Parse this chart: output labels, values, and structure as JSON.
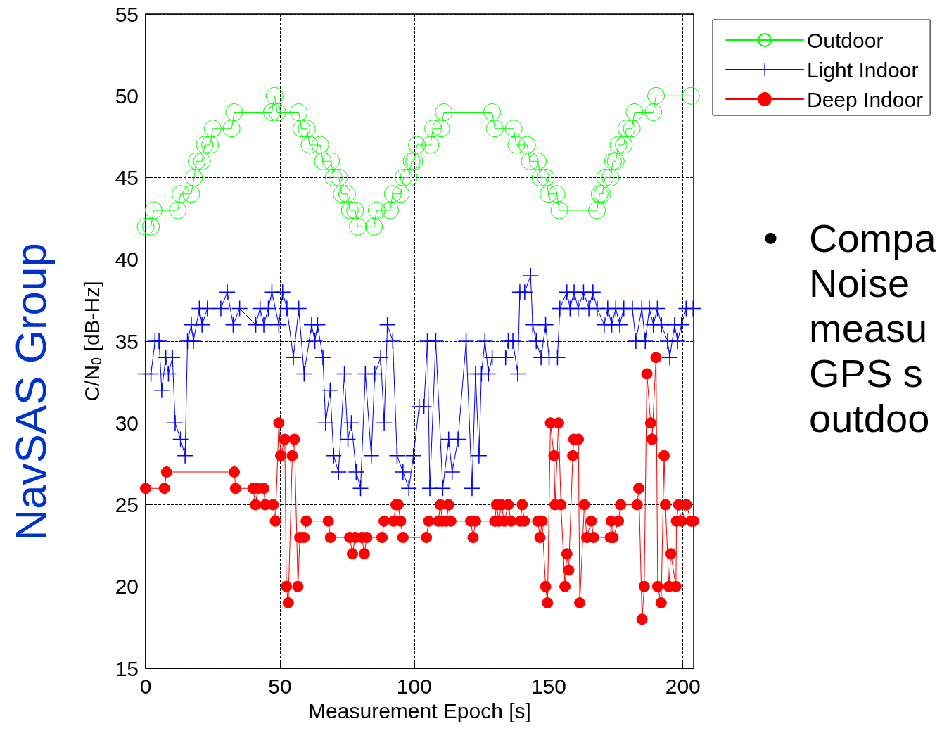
{
  "chart_data": {
    "type": "line",
    "xlabel": "Measurement Epoch [s]",
    "ylabel": "C/N$_{0}$ [dB-Hz]",
    "xlim": [
      0,
      204
    ],
    "ylim": [
      15,
      55
    ],
    "xticks": [
      0,
      50,
      100,
      150,
      200
    ],
    "yticks": [
      15,
      20,
      25,
      30,
      35,
      40,
      45,
      50,
      55
    ],
    "grid": true,
    "legend": "top right",
    "line_style": "solid",
    "annotations": [
      "NavSAS Group",
      "•",
      "Compa\nNoise\nmeasu\nGPS s\noutdoo"
    ],
    "series": [
      {
        "name": "Outdoor",
        "color": "#00ff00",
        "marker": "circle",
        "x": [
          0,
          2,
          3,
          12,
          13,
          17,
          18,
          19,
          21,
          22,
          24,
          25,
          32,
          33,
          47,
          48,
          49,
          57,
          58,
          60,
          61,
          65,
          66,
          69,
          70,
          72,
          73,
          75,
          76,
          78,
          79,
          85,
          86,
          91,
          92,
          95,
          96,
          98,
          99,
          100,
          101,
          106,
          107,
          110,
          111,
          129,
          130,
          137,
          138,
          142,
          143,
          146,
          147,
          149,
          150,
          153,
          154,
          168,
          169,
          170,
          171,
          173,
          174,
          175,
          176,
          178,
          179,
          181,
          182,
          189,
          190,
          203
        ],
        "values": [
          42,
          42,
          43,
          43,
          44,
          44,
          45,
          46,
          46,
          47,
          47,
          48,
          48,
          49,
          49,
          50,
          49,
          49,
          48,
          48,
          47,
          47,
          46,
          46,
          45,
          45,
          44,
          44,
          43,
          43,
          42,
          42,
          43,
          43,
          44,
          44,
          45,
          45,
          46,
          46,
          47,
          47,
          48,
          48,
          49,
          49,
          48,
          48,
          47,
          47,
          46,
          46,
          45,
          45,
          44,
          44,
          43,
          43,
          44,
          44,
          45,
          45,
          46,
          46,
          47,
          47,
          48,
          48,
          49,
          49,
          50,
          50
        ]
      },
      {
        "name": "Light Indoor",
        "color": "#0000ff",
        "marker": "cross",
        "x": [
          0,
          2,
          3.5,
          5,
          6,
          7.5,
          8.5,
          10,
          11,
          13,
          14.7,
          15.6,
          17,
          17.8,
          20,
          21,
          23,
          28,
          30.4,
          32.6,
          35,
          41,
          42.6,
          44,
          45.7,
          47,
          49.6,
          51,
          52.6,
          55,
          57,
          59,
          61.8,
          63,
          64,
          66,
          67,
          68.7,
          70,
          71.8,
          74,
          75.3,
          76.6,
          78.4,
          80,
          81.8,
          84,
          85.3,
          87.5,
          88.8,
          90,
          92,
          93.6,
          95.8,
          98,
          99.7,
          101.8,
          103.6,
          104.9,
          105.8,
          108,
          110.6,
          112.8,
          114.1,
          116.3,
          119.3,
          121.5,
          122.8,
          124.1,
          125,
          126.3,
          127.6,
          129,
          134,
          135,
          136.7,
          138.5,
          139.3,
          141.1,
          143.3,
          144.1,
          145.4,
          147.2,
          148.9,
          150.2,
          153.3,
          154.2,
          156.8,
          158,
          159.5,
          161,
          163,
          165,
          166.5,
          168.1,
          170.7,
          172,
          173.5,
          175,
          176.5,
          178,
          181.2,
          182.5,
          184.7,
          186,
          187.5,
          189,
          190.5,
          192,
          194.3,
          195.1,
          196.9,
          198,
          199.5,
          201.2,
          203.8
        ],
        "values": [
          33,
          33,
          35,
          35,
          32,
          34,
          33,
          34,
          30,
          29,
          28,
          35,
          36,
          35,
          37,
          36,
          37,
          37,
          38,
          36,
          37,
          36,
          37,
          36,
          37,
          38,
          36,
          38,
          37,
          34,
          37,
          33,
          36,
          35,
          36,
          34,
          30,
          32,
          28,
          27,
          33,
          29,
          30,
          27,
          26,
          33,
          28,
          33,
          34,
          30,
          36,
          35,
          28,
          27,
          26,
          28,
          31,
          31,
          35,
          26,
          35,
          26,
          29,
          27,
          29,
          35,
          26,
          33,
          28,
          33,
          35,
          33,
          34,
          34,
          35,
          35,
          33,
          38,
          38,
          39,
          36,
          35,
          34,
          36,
          34,
          34,
          37,
          38,
          37,
          38,
          37,
          38,
          37,
          38,
          37,
          36,
          37,
          36,
          37,
          36,
          37,
          37,
          35,
          37,
          35,
          37,
          36,
          37,
          36,
          35,
          34,
          36,
          35,
          36,
          37,
          37
        ]
      },
      {
        "name": "Deep Indoor",
        "color": "#ff0000",
        "marker": "circle",
        "x": [
          0,
          7,
          7.8,
          33,
          33.5,
          40,
          40.9,
          41.8,
          44,
          44.5,
          47.5,
          48.3,
          49.6,
          50.3,
          51.8,
          52.4,
          53.1,
          54.6,
          55.4,
          56.7,
          57.4,
          59,
          59.8,
          68,
          68.8,
          76,
          77,
          78,
          80.5,
          81.4,
          82.3,
          88,
          88.8,
          92.3,
          93.2,
          94,
          94.9,
          95.8,
          104.5,
          105.4,
          109,
          109.7,
          110.5,
          112,
          112.8,
          113.6,
          121,
          121.9,
          122.8,
          130,
          130.6,
          131.5,
          132.4,
          133.5,
          135,
          136,
          139.5,
          140.2,
          141,
          146,
          146.8,
          147.6,
          148.9,
          149.6,
          150.7,
          152,
          152.4,
          153.7,
          154.6,
          156.1,
          156.8,
          157.5,
          159,
          159.4,
          161.1,
          161.6,
          163.3,
          164.2,
          165.9,
          166.8,
          173,
          173.3,
          174,
          176,
          176.8,
          183,
          183.6,
          184.8,
          185.6,
          186.6,
          188,
          188.5,
          190,
          190.6,
          191.9,
          193,
          193.5,
          194.8,
          195.5,
          197.4,
          197.6,
          198.4,
          199.5,
          201.3,
          203,
          204
        ],
        "values": [
          26,
          26,
          27,
          27,
          26,
          26,
          25,
          26,
          26,
          25,
          25,
          24,
          30,
          28,
          29,
          20,
          19,
          28,
          29,
          20,
          23,
          23,
          24,
          24,
          23,
          23,
          22,
          23,
          23,
          22,
          23,
          23,
          24,
          24,
          25,
          25,
          24,
          23,
          23,
          24,
          24,
          25,
          24,
          24,
          25,
          24,
          24,
          23,
          24,
          24,
          25,
          24,
          25,
          24,
          25,
          24,
          24,
          25,
          24,
          24,
          23,
          24,
          20,
          19,
          30,
          28,
          25,
          30,
          25,
          20,
          22,
          21,
          28,
          29,
          29,
          19,
          25,
          23,
          24,
          23,
          23,
          24,
          23,
          24,
          25,
          25,
          26,
          18,
          20,
          33,
          30,
          29,
          34,
          20,
          19,
          28,
          25,
          20,
          22,
          20,
          24,
          25,
          24,
          25,
          24,
          24
        ]
      }
    ]
  }
}
